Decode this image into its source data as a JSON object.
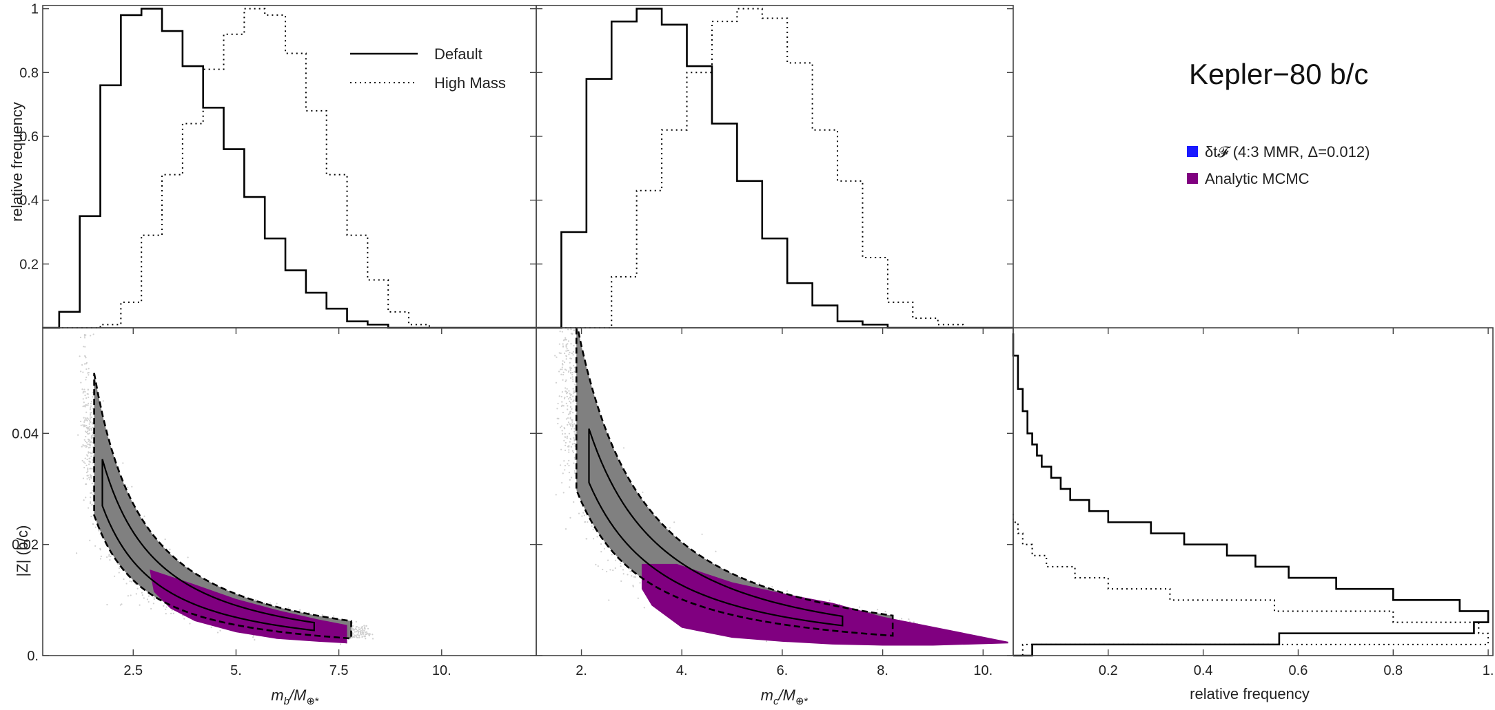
{
  "figure_title": "Kepler−80 b/c",
  "colors": {
    "default_line": "#000000",
    "scatter": "#a9a9a9",
    "posterior_fill": "#808080",
    "analytic_mcmc": "#800080",
    "legend_blue": "#1a1aff"
  },
  "legend_hist": {
    "default": "Default",
    "high_mass": "High Mass"
  },
  "legend_corner": {
    "delta_t_label": "δt𝓕 (4:3 MMR, Δ=0.012)",
    "analytic_label": "Analytic MCMC"
  },
  "chart_data": [
    {
      "id": "hist_mb",
      "type": "step-histogram",
      "ylabel": "relative frequency",
      "xlim": [
        0.3,
        12.3
      ],
      "ylim": [
        0,
        1.01
      ],
      "yticks": [
        0.2,
        0.4,
        0.6,
        0.8,
        1
      ],
      "ytick_labels": [
        "0.2",
        "0.4",
        "0.6",
        "0.8",
        "1"
      ],
      "bin_width": 0.5,
      "series": [
        {
          "name": "Default",
          "style": "solid",
          "start": 0.7,
          "values": [
            0.05,
            0.35,
            0.76,
            0.98,
            1.0,
            0.93,
            0.82,
            0.69,
            0.56,
            0.41,
            0.28,
            0.18,
            0.11,
            0.06,
            0.02,
            0.01,
            0.0
          ]
        },
        {
          "name": "High Mass",
          "style": "dotted",
          "start": 1.7,
          "values": [
            0.01,
            0.08,
            0.29,
            0.48,
            0.64,
            0.81,
            0.92,
            1.0,
            0.98,
            0.86,
            0.68,
            0.48,
            0.29,
            0.15,
            0.05,
            0.01,
            0.0
          ]
        }
      ]
    },
    {
      "id": "hist_mc",
      "type": "step-histogram",
      "xlim": [
        1.1,
        10.6
      ],
      "ylim": [
        0,
        1.01
      ],
      "yticks": [
        0.2,
        0.4,
        0.6,
        0.8,
        1
      ],
      "bin_width": 0.5,
      "series": [
        {
          "name": "Default",
          "style": "solid",
          "start": 1.6,
          "values": [
            0.3,
            0.78,
            0.96,
            1.0,
            0.95,
            0.82,
            0.64,
            0.46,
            0.28,
            0.14,
            0.07,
            0.02,
            0.01,
            0.0
          ]
        },
        {
          "name": "High Mass",
          "style": "dotted",
          "start": 2.6,
          "values": [
            0.16,
            0.43,
            0.62,
            0.8,
            0.96,
            1.0,
            0.97,
            0.83,
            0.62,
            0.46,
            0.22,
            0.08,
            0.03,
            0.01,
            0.0
          ]
        }
      ]
    },
    {
      "id": "scatter_mb",
      "type": "scatter-contour",
      "xlabel": "m_b/M_⊕*",
      "xlabel_main": "m",
      "xlabel_sub": "b",
      "xlabel_rest": "/M",
      "ylabel": "|Z| (b/c)",
      "xlim": [
        0.3,
        12.3
      ],
      "ylim": [
        0,
        0.059
      ],
      "xticks": [
        2.5,
        5.0,
        7.5,
        10.0
      ],
      "xtick_labels": [
        "2.5",
        "5.",
        "7.5",
        "10."
      ],
      "yticks": [
        0,
        0.02,
        0.04
      ],
      "ytick_labels": [
        "0.",
        "0.02",
        "0.04"
      ],
      "ridge": {
        "A": 0.062,
        "p": 1.3,
        "x_from": 1.3,
        "x_to": 8.2
      },
      "outer_band": {
        "hi": 1.45,
        "lo": 0.72,
        "x_from": 1.55,
        "x_to": 7.8
      },
      "inner_band": {
        "hi": 1.18,
        "lo": 0.9,
        "x_from": 1.75,
        "x_to": 6.9
      },
      "analytic": {
        "upper": [
          [
            2.9,
            0.0155
          ],
          [
            4.0,
            0.0128
          ],
          [
            5.0,
            0.0102
          ],
          [
            6.0,
            0.0082
          ],
          [
            7.0,
            0.0065
          ],
          [
            7.7,
            0.0055
          ]
        ],
        "lower": [
          [
            7.7,
            0.0022
          ],
          [
            7.0,
            0.0025
          ],
          [
            6.0,
            0.003
          ],
          [
            5.0,
            0.0042
          ],
          [
            4.0,
            0.0062
          ],
          [
            3.4,
            0.0085
          ],
          [
            3.0,
            0.0115
          ]
        ]
      }
    },
    {
      "id": "scatter_mc",
      "type": "scatter-contour",
      "xlabel": "m_c/M_⊕*",
      "xlabel_main": "m",
      "xlabel_sub": "c",
      "xlabel_rest": "/M",
      "xlim": [
        1.1,
        10.6
      ],
      "ylim": [
        0,
        0.059
      ],
      "xticks": [
        2,
        4,
        6,
        8,
        10
      ],
      "xtick_labels": [
        "2.",
        "4.",
        "6.",
        "8.",
        "10."
      ],
      "yticks": [
        0,
        0.02,
        0.04
      ],
      "ridge": {
        "A": 0.105,
        "p": 1.45,
        "x_from": 1.6,
        "x_to": 8.6
      },
      "outer_band": {
        "hi": 1.45,
        "lo": 0.72,
        "x_from": 1.9,
        "x_to": 8.2
      },
      "inner_band": {
        "hi": 1.18,
        "lo": 0.9,
        "x_from": 2.15,
        "x_to": 7.2
      },
      "analytic": {
        "upper": [
          [
            3.2,
            0.0165
          ],
          [
            3.9,
            0.0165
          ],
          [
            5.0,
            0.0132
          ],
          [
            6.0,
            0.0112
          ],
          [
            7.0,
            0.0095
          ],
          [
            8.0,
            0.007
          ],
          [
            9.0,
            0.0052
          ],
          [
            10.5,
            0.0025
          ]
        ],
        "lower": [
          [
            10.5,
            0.0022
          ],
          [
            9.0,
            0.0018
          ],
          [
            8.0,
            0.0018
          ],
          [
            7.0,
            0.002
          ],
          [
            6.0,
            0.0025
          ],
          [
            5.0,
            0.0032
          ],
          [
            4.0,
            0.005
          ],
          [
            3.4,
            0.009
          ],
          [
            3.2,
            0.012
          ]
        ]
      }
    },
    {
      "id": "hist_z",
      "type": "step-histogram-horizontal",
      "xlabel": "relative frequency",
      "xlim": [
        0,
        1.01
      ],
      "ylim": [
        0,
        0.059
      ],
      "xticks": [
        0.2,
        0.4,
        0.6,
        0.8,
        1.0
      ],
      "xtick_labels": [
        "0.2",
        "0.4",
        "0.6",
        "0.8",
        "1."
      ],
      "bin_width": 0.002,
      "series": [
        {
          "name": "Default",
          "style": "solid",
          "values": [
            0.04,
            0.56,
            0.97,
            1.0,
            0.94,
            0.8,
            0.68,
            0.58,
            0.51,
            0.45,
            0.36,
            0.29,
            0.2,
            0.16,
            0.12,
            0.1,
            0.08,
            0.06,
            0.05,
            0.04,
            0.03,
            0.03,
            0.02,
            0.02,
            0.01,
            0.01,
            0.01,
            0.0,
            0.0
          ]
        },
        {
          "name": "High Mass",
          "style": "dotted",
          "values": [
            0.02,
            1.0,
            0.98,
            0.8,
            0.55,
            0.33,
            0.2,
            0.13,
            0.07,
            0.04,
            0.02,
            0.01,
            0.0
          ]
        }
      ]
    }
  ]
}
